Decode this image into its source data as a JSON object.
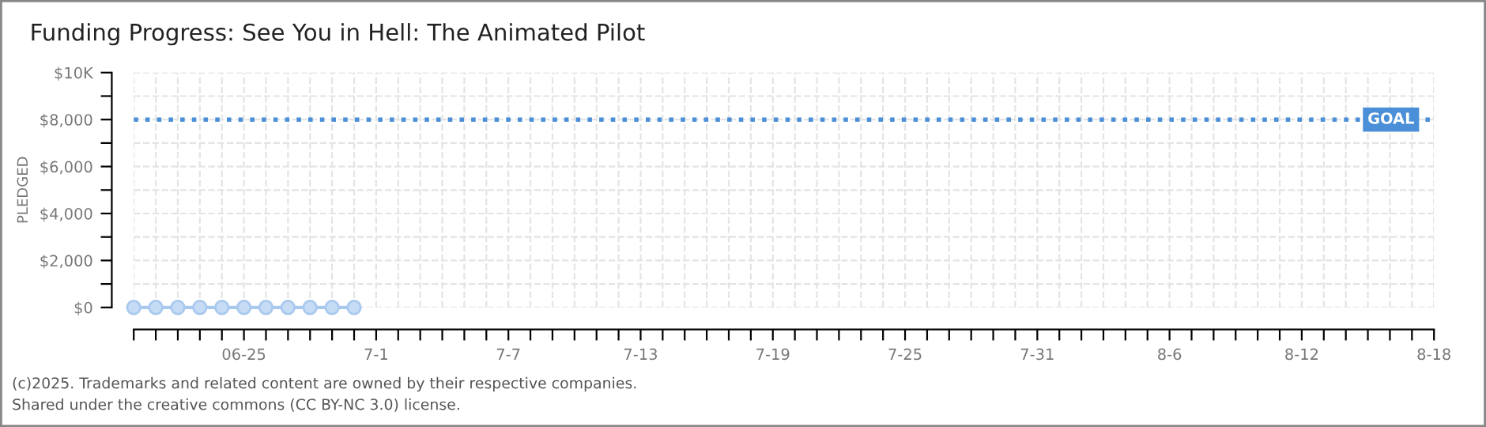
{
  "chart_data": {
    "type": "line",
    "title": "Funding Progress: See You in Hell: The Animated Pilot",
    "ylabel": "PLEDGED",
    "x": [
      "2025-06-20",
      "2025-06-21",
      "2025-06-22",
      "2025-06-23",
      "2025-06-24",
      "2025-06-25",
      "2025-06-26",
      "2025-06-27",
      "2025-06-28",
      "2025-06-29",
      "2025-06-30"
    ],
    "series": [
      {
        "color": "#a9c9ee",
        "values": [
          0,
          0,
          0,
          0,
          0,
          0,
          0,
          0,
          0,
          0,
          0
        ]
      }
    ],
    "marker": "circle",
    "grid": true,
    "legend": false,
    "xlim": [
      "2025-06-20",
      "2025-08-18"
    ],
    "xticks": [
      {
        "value": "2025-06-20",
        "label": null
      },
      {
        "value": "2025-06-21",
        "label": null
      },
      {
        "value": "2025-06-22",
        "label": null
      },
      {
        "value": "2025-06-23",
        "label": null
      },
      {
        "value": "2025-06-24",
        "label": null
      },
      {
        "value": "2025-06-25",
        "label": "06-25"
      },
      {
        "value": "2025-06-26",
        "label": null
      },
      {
        "value": "2025-06-27",
        "label": null
      },
      {
        "value": "2025-06-28",
        "label": null
      },
      {
        "value": "2025-06-29",
        "label": null
      },
      {
        "value": "2025-06-30",
        "label": null
      },
      {
        "value": "2025-07-01",
        "label": "7-1"
      },
      {
        "value": "2025-07-02",
        "label": null
      },
      {
        "value": "2025-07-03",
        "label": null
      },
      {
        "value": "2025-07-04",
        "label": null
      },
      {
        "value": "2025-07-05",
        "label": null
      },
      {
        "value": "2025-07-06",
        "label": null
      },
      {
        "value": "2025-07-07",
        "label": "7-7"
      },
      {
        "value": "2025-07-08",
        "label": null
      },
      {
        "value": "2025-07-09",
        "label": null
      },
      {
        "value": "2025-07-10",
        "label": null
      },
      {
        "value": "2025-07-11",
        "label": null
      },
      {
        "value": "2025-07-12",
        "label": null
      },
      {
        "value": "2025-07-13",
        "label": "7-13"
      },
      {
        "value": "2025-07-14",
        "label": null
      },
      {
        "value": "2025-07-15",
        "label": null
      },
      {
        "value": "2025-07-16",
        "label": null
      },
      {
        "value": "2025-07-17",
        "label": null
      },
      {
        "value": "2025-07-18",
        "label": null
      },
      {
        "value": "2025-07-19",
        "label": "7-19"
      },
      {
        "value": "2025-07-20",
        "label": null
      },
      {
        "value": "2025-07-21",
        "label": null
      },
      {
        "value": "2025-07-22",
        "label": null
      },
      {
        "value": "2025-07-23",
        "label": null
      },
      {
        "value": "2025-07-24",
        "label": null
      },
      {
        "value": "2025-07-25",
        "label": "7-25"
      },
      {
        "value": "2025-07-26",
        "label": null
      },
      {
        "value": "2025-07-27",
        "label": null
      },
      {
        "value": "2025-07-28",
        "label": null
      },
      {
        "value": "2025-07-29",
        "label": null
      },
      {
        "value": "2025-07-30",
        "label": null
      },
      {
        "value": "2025-07-31",
        "label": "7-31"
      },
      {
        "value": "2025-08-01",
        "label": null
      },
      {
        "value": "2025-08-02",
        "label": null
      },
      {
        "value": "2025-08-03",
        "label": null
      },
      {
        "value": "2025-08-04",
        "label": null
      },
      {
        "value": "2025-08-05",
        "label": null
      },
      {
        "value": "2025-08-06",
        "label": "8-6"
      },
      {
        "value": "2025-08-07",
        "label": null
      },
      {
        "value": "2025-08-08",
        "label": null
      },
      {
        "value": "2025-08-09",
        "label": null
      },
      {
        "value": "2025-08-10",
        "label": null
      },
      {
        "value": "2025-08-11",
        "label": null
      },
      {
        "value": "2025-08-12",
        "label": "8-12"
      },
      {
        "value": "2025-08-13",
        "label": null
      },
      {
        "value": "2025-08-14",
        "label": null
      },
      {
        "value": "2025-08-15",
        "label": null
      },
      {
        "value": "2025-08-16",
        "label": null
      },
      {
        "value": "2025-08-17",
        "label": null
      },
      {
        "value": "2025-08-18",
        "label": "8-18"
      }
    ],
    "ylim": [
      0,
      10000
    ],
    "yticks": [
      {
        "value": 0,
        "label": "$0"
      },
      {
        "value": 1000,
        "label": null
      },
      {
        "value": 2000,
        "label": "$2,000"
      },
      {
        "value": 3000,
        "label": null
      },
      {
        "value": 4000,
        "label": "$4,000"
      },
      {
        "value": 5000,
        "label": null
      },
      {
        "value": 6000,
        "label": "$6,000"
      },
      {
        "value": 7000,
        "label": null
      },
      {
        "value": 8000,
        "label": "$8,000"
      },
      {
        "value": 9000,
        "label": null
      },
      {
        "value": 10000,
        "label": "$10K"
      }
    ],
    "ref_lines": [
      {
        "axis": "y",
        "value": 8000,
        "label": "GOAL",
        "color": "#4a8fd8",
        "line_style": "dotted"
      }
    ],
    "annotations": [
      "(c)2025. Trademarks and related content are owned by their respective companies.",
      "Shared under the creative commons (CC BY-NC 3.0) license."
    ]
  }
}
